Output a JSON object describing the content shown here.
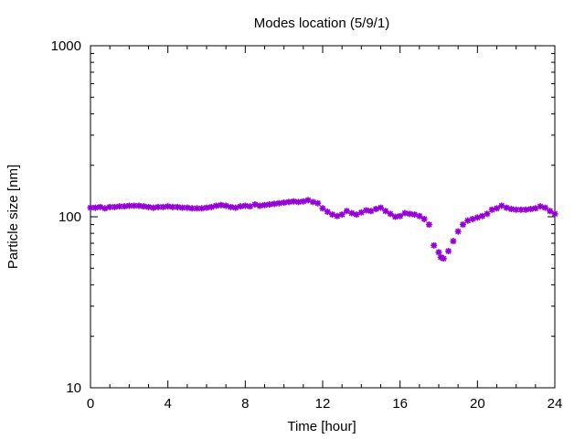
{
  "chart_data": {
    "type": "scatter",
    "title": "Modes location (5/9/1)",
    "xlabel": "Time [hour]",
    "ylabel": "Particle size [nm]",
    "xlim": [
      0,
      24
    ],
    "ylim": [
      10,
      1000
    ],
    "yscale": "log",
    "x_ticks": [
      "0",
      "4",
      "8",
      "12",
      "16",
      "20",
      "24"
    ],
    "y_ticks": [
      "10",
      "100",
      "1000"
    ],
    "grid": false,
    "marker": "star",
    "series": [
      {
        "color": "#9400d3",
        "points": [
          [
            0.0,
            113
          ],
          [
            0.25,
            113
          ],
          [
            0.5,
            114
          ],
          [
            0.75,
            112
          ],
          [
            1.0,
            114
          ],
          [
            1.25,
            114
          ],
          [
            1.5,
            115
          ],
          [
            1.75,
            115
          ],
          [
            2.0,
            116
          ],
          [
            2.25,
            116
          ],
          [
            2.5,
            116
          ],
          [
            2.75,
            115
          ],
          [
            3.0,
            114
          ],
          [
            3.25,
            113
          ],
          [
            3.5,
            114
          ],
          [
            3.75,
            114
          ],
          [
            4.0,
            115
          ],
          [
            4.25,
            114
          ],
          [
            4.5,
            114
          ],
          [
            4.75,
            113
          ],
          [
            5.0,
            113
          ],
          [
            5.25,
            112
          ],
          [
            5.5,
            112
          ],
          [
            5.75,
            112
          ],
          [
            6.0,
            113
          ],
          [
            6.25,
            114
          ],
          [
            6.5,
            116
          ],
          [
            6.75,
            117
          ],
          [
            7.0,
            116
          ],
          [
            7.25,
            114
          ],
          [
            7.5,
            113
          ],
          [
            7.75,
            115
          ],
          [
            8.0,
            116
          ],
          [
            8.25,
            115
          ],
          [
            8.5,
            118
          ],
          [
            8.75,
            116
          ],
          [
            9.0,
            117
          ],
          [
            9.25,
            118
          ],
          [
            9.5,
            119
          ],
          [
            9.75,
            120
          ],
          [
            10.0,
            121
          ],
          [
            10.25,
            122
          ],
          [
            10.5,
            123
          ],
          [
            10.75,
            122
          ],
          [
            11.0,
            123
          ],
          [
            11.25,
            125
          ],
          [
            11.5,
            122
          ],
          [
            11.75,
            120
          ],
          [
            12.0,
            112
          ],
          [
            12.25,
            107
          ],
          [
            12.5,
            103
          ],
          [
            12.75,
            101
          ],
          [
            13.0,
            103
          ],
          [
            13.25,
            108
          ],
          [
            13.5,
            105
          ],
          [
            13.75,
            103
          ],
          [
            14.0,
            106
          ],
          [
            14.25,
            109
          ],
          [
            14.5,
            108
          ],
          [
            14.75,
            111
          ],
          [
            15.0,
            113
          ],
          [
            15.25,
            108
          ],
          [
            15.5,
            104
          ],
          [
            15.75,
            100
          ],
          [
            16.0,
            101
          ],
          [
            16.25,
            105
          ],
          [
            16.5,
            104
          ],
          [
            16.75,
            103
          ],
          [
            17.0,
            101
          ],
          [
            17.25,
            97
          ],
          [
            17.5,
            90
          ],
          [
            17.75,
            68
          ],
          [
            18.0,
            62
          ],
          [
            18.1,
            58
          ],
          [
            18.25,
            57
          ],
          [
            18.5,
            63
          ],
          [
            18.75,
            72
          ],
          [
            19.0,
            82
          ],
          [
            19.25,
            90
          ],
          [
            19.5,
            95
          ],
          [
            19.75,
            97
          ],
          [
            20.0,
            99
          ],
          [
            20.25,
            101
          ],
          [
            20.5,
            104
          ],
          [
            20.75,
            110
          ],
          [
            21.0,
            112
          ],
          [
            21.25,
            116
          ],
          [
            21.5,
            113
          ],
          [
            21.75,
            111
          ],
          [
            22.0,
            110
          ],
          [
            22.25,
            110
          ],
          [
            22.5,
            110
          ],
          [
            22.75,
            111
          ],
          [
            23.0,
            112
          ],
          [
            23.25,
            115
          ],
          [
            23.5,
            113
          ],
          [
            23.75,
            108
          ],
          [
            24.0,
            104
          ]
        ]
      }
    ]
  }
}
